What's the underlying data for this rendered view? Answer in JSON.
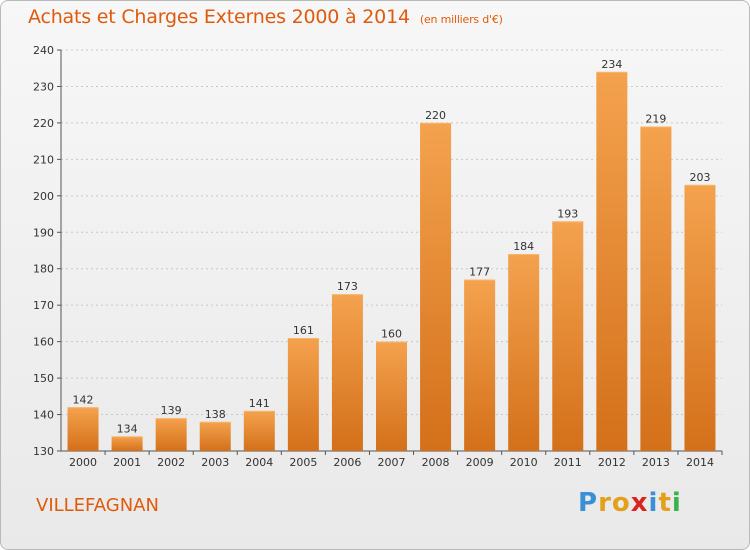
{
  "header": {
    "title": "Achats et Charges Externes 2000 à 2014",
    "unit": "(en milliers d'€)"
  },
  "footer": {
    "commune": "VILLEFAGNAN",
    "logo_letters": [
      "P",
      "r",
      "o",
      "x",
      "i",
      "t",
      "i"
    ],
    "logo_colors": [
      "#3a8fd6",
      "#e4a01a",
      "#e4a01a",
      "#d8261f",
      "#3a8fd6",
      "#e4a01a",
      "#3ab34a"
    ]
  },
  "colors": {
    "bar_top": "#f4a24e",
    "bar_bottom": "#d4701a",
    "title": "#e05a0b",
    "grid": "#c8c8c8"
  },
  "chart_data": {
    "type": "bar",
    "title": "Achats et Charges Externes 2000 à 2014",
    "subtitle": "(en milliers d'€)",
    "categories": [
      "2000",
      "2001",
      "2002",
      "2003",
      "2004",
      "2005",
      "2006",
      "2007",
      "2008",
      "2009",
      "2010",
      "2011",
      "2012",
      "2013",
      "2014"
    ],
    "values": [
      142,
      134,
      139,
      138,
      141,
      161,
      173,
      160,
      220,
      177,
      184,
      193,
      234,
      219,
      203
    ],
    "ylim": [
      130,
      240
    ],
    "yticks": [
      130,
      140,
      150,
      160,
      170,
      180,
      190,
      200,
      210,
      220,
      230,
      240
    ],
    "grid": true,
    "data_labels": true
  }
}
